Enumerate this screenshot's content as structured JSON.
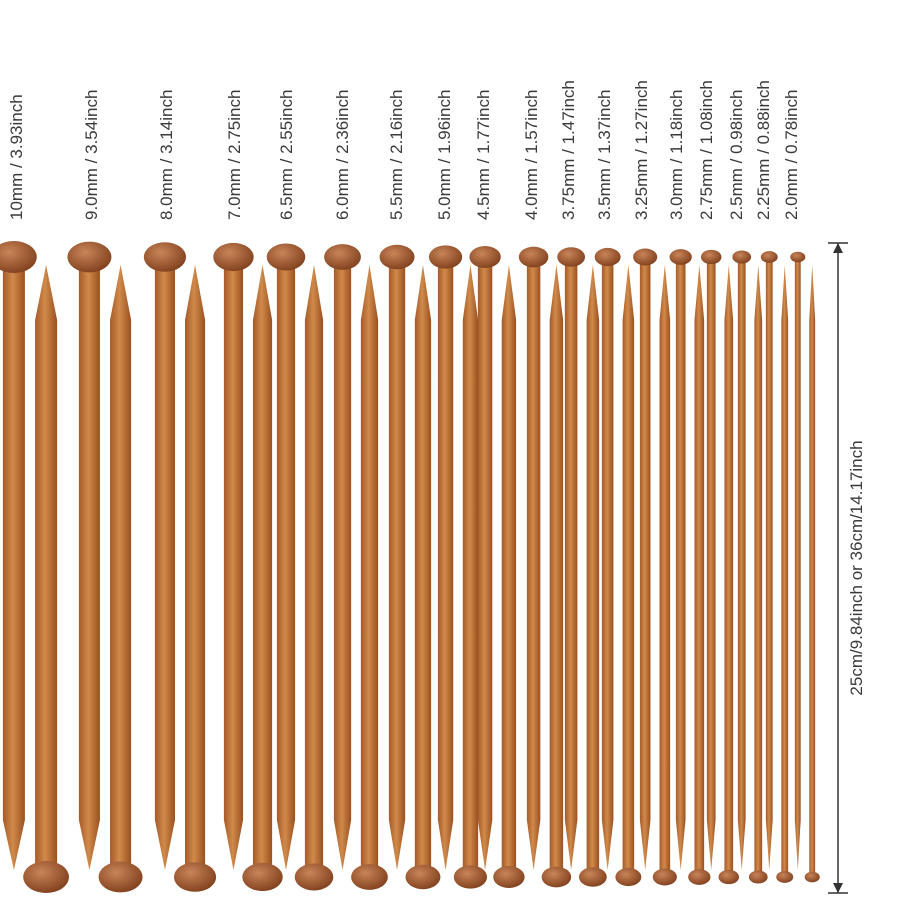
{
  "labels": [
    "10mm / 3.93inch",
    "9.0mm / 3.54inch",
    "8.0mm / 3.14inch",
    "7.0mm / 2.75inch",
    "6.5mm / 2.55inch",
    "6.0mm / 2.36inch",
    "5.5mm / 2.16inch",
    "5.0mm / 1.96inch",
    "4.5mm / 1.77inch",
    "4.0mm / 1.57inch",
    "3.75mm / 1.47inch",
    "3.5mm / 1.37inch",
    "3.25mm / 1.27inch",
    "3.0mm / 1.18inch",
    "2.75mm / 1.08inch",
    "2.5mm / 0.98inch",
    "2.25mm / 0.88inch",
    "2.0mm / 0.78inch"
  ],
  "length_label": "25cm/9.84inch or 36cm/14.17inch"
}
